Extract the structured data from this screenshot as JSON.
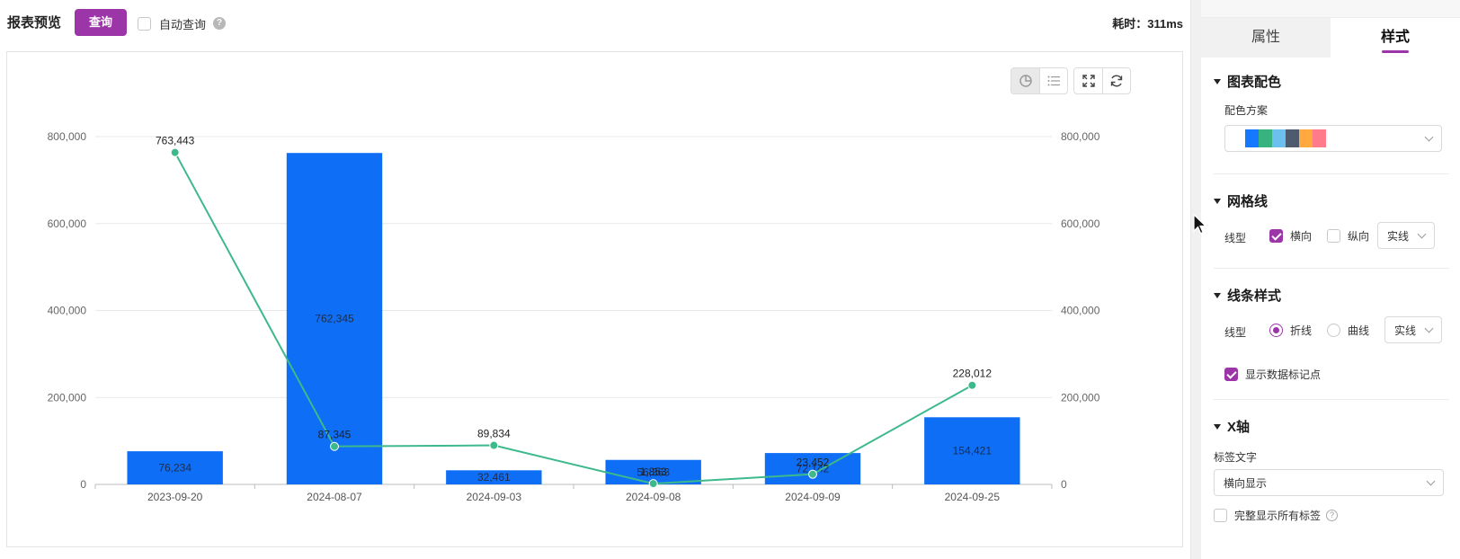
{
  "header": {
    "title": "报表预览",
    "query_button": "查询",
    "auto_query_label": "自动查询",
    "auto_query_checked": false,
    "help_glyph": "?",
    "elapsed": "耗时：311ms"
  },
  "toolbar": {
    "icons": [
      "chart-view-icon",
      "table-view-icon",
      "fullscreen-icon",
      "refresh-icon"
    ]
  },
  "chart_data": {
    "type": "bar+line",
    "categories": [
      "2023-09-20",
      "2024-08-07",
      "2024-09-03",
      "2024-09-08",
      "2024-09-09",
      "2024-09-25"
    ],
    "series": [
      {
        "type": "bar",
        "color": "#0e6ef5",
        "values": [
          76234,
          762345,
          32461,
          56363,
          72142,
          154421
        ],
        "labels": [
          "76,234",
          "762,345",
          "32,461",
          "56,363",
          "72,142",
          "154,421"
        ]
      },
      {
        "type": "line",
        "color": "#3db98c",
        "values": [
          763443,
          87345,
          89834,
          1853,
          23452,
          228012
        ],
        "labels": [
          "763,443",
          "87,345",
          "89,834",
          "1,853",
          "23,452",
          "228,012"
        ]
      }
    ],
    "y_left_ticks": [
      "0",
      "200,000",
      "400,000",
      "600,000",
      "800,000"
    ],
    "y_right_ticks": [
      "0",
      "200,000",
      "400,000",
      "600,000",
      "800,000"
    ],
    "ylim": [
      0,
      800000
    ],
    "grid": "horizontal",
    "title": "",
    "xlabel": "",
    "ylabel": ""
  },
  "panel": {
    "tabs": [
      {
        "label": "属性",
        "active": false
      },
      {
        "label": "样式",
        "active": true
      }
    ],
    "color_section": {
      "title": "图表配色",
      "scheme_label": "配色方案",
      "scheme_colors": [
        "#1677ff",
        "#36b37e",
        "#6cc0f0",
        "#4e5a6e",
        "#ffa940",
        "#ff7a8a"
      ]
    },
    "grid_section": {
      "title": "网格线",
      "type_label": "线型",
      "horizontal_label": "横向",
      "horizontal_checked": true,
      "vertical_label": "纵向",
      "vertical_checked": false,
      "style_value": "实线"
    },
    "line_section": {
      "title": "线条样式",
      "type_label": "线型",
      "polyline_label": "折线",
      "polyline_selected": true,
      "curve_label": "曲线",
      "style_value": "实线",
      "show_marker_label": "显示数据标记点",
      "show_marker_checked": true
    },
    "xaxis_section": {
      "title": "X轴",
      "label_text_label": "标签文字",
      "label_display_value": "横向显示",
      "show_all_label": "完整显示所有标签",
      "show_all_checked": false,
      "help_glyph": "?"
    }
  }
}
